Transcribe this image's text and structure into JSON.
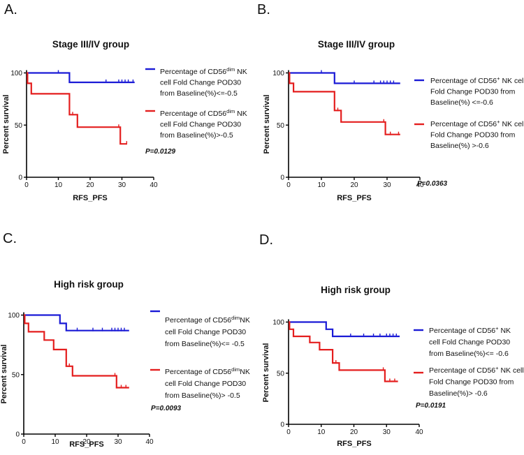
{
  "colors": {
    "group_low": "#1a1ad6",
    "group_high": "#e41e1e",
    "axis": "#000000"
  },
  "chart_data": [
    {
      "panel": "A.",
      "type": "line",
      "title": "Stage III/IV group",
      "xlabel": "RFS_PFS",
      "ylabel": "Percent survival",
      "xlim": [
        0,
        40
      ],
      "ylim": [
        0,
        100
      ],
      "xticks": [
        0,
        10,
        20,
        30,
        40
      ],
      "yticks": [
        0,
        50,
        100
      ],
      "p_value": "P=0.0129",
      "series": [
        {
          "name": "Percentage of CD56dim NK cell Fold Change POD30 from Baseline(%)<=-0.5",
          "legend_lines": [
            [
              {
                "t": "Percentage of CD56"
              },
              {
                "t": "dim",
                "sup": true
              },
              {
                "t": " NK"
              }
            ],
            [
              {
                "t": "cell Fold Change POD30"
              }
            ],
            [
              {
                "t": "from Baseline(%)<=-0.5"
              }
            ]
          ],
          "color_key": "group_low",
          "steps": [
            [
              0,
              100
            ],
            [
              13.5,
              100
            ],
            [
              13.5,
              91
            ],
            [
              34,
              91
            ]
          ],
          "censors": [
            [
              10,
              100
            ],
            [
              25,
              91
            ],
            [
              29,
              91
            ],
            [
              30,
              91
            ],
            [
              31,
              91
            ],
            [
              32,
              91
            ],
            [
              33.5,
              91
            ]
          ]
        },
        {
          "name": "Percentage of CD56dim NK cell Fold Change POD30 from Baseline(%)>-0.5",
          "legend_lines": [
            [
              {
                "t": "Percentage of CD56"
              },
              {
                "t": "dim",
                "sup": true
              },
              {
                "t": " NK"
              }
            ],
            [
              {
                "t": "cell Fold Change POD30"
              }
            ],
            [
              {
                "t": "from Baseline(%)>-0.5"
              }
            ]
          ],
          "color_key": "group_high",
          "steps": [
            [
              0,
              100
            ],
            [
              0.3,
              100
            ],
            [
              0.3,
              90
            ],
            [
              1.5,
              90
            ],
            [
              1.5,
              80
            ],
            [
              13.5,
              80
            ],
            [
              13.5,
              60
            ],
            [
              16,
              60
            ],
            [
              16,
              48
            ],
            [
              29.5,
              48
            ],
            [
              29.5,
              32
            ],
            [
              31.5,
              32
            ]
          ],
          "censors": [
            [
              14.5,
              60
            ],
            [
              29,
              48
            ],
            [
              31.5,
              32
            ]
          ]
        }
      ]
    },
    {
      "panel": "B.",
      "type": "line",
      "title": "Stage III/IV group",
      "xlabel": "RFS_PFS",
      "ylabel": "Percent survival",
      "xlim": [
        0,
        40
      ],
      "ylim": [
        0,
        100
      ],
      "xticks": [
        0,
        10,
        20,
        30,
        40
      ],
      "yticks": [
        0,
        50,
        100
      ],
      "p_value": "P=0.0363",
      "series": [
        {
          "name": "Percentage of CD56+ NK cell Fold Change POD30 from Baseline(%) <=-0.6",
          "legend_lines": [
            [
              {
                "t": "Percentage of CD56"
              },
              {
                "t": "+",
                "sup": true
              },
              {
                "t": " NK cell"
              }
            ],
            [
              {
                "t": "Fold Change POD30 from"
              }
            ],
            [
              {
                "t": "Baseline(%) <=-0.6"
              }
            ]
          ],
          "color_key": "group_low",
          "steps": [
            [
              0,
              100
            ],
            [
              14,
              100
            ],
            [
              14,
              90
            ],
            [
              34,
              90
            ]
          ],
          "censors": [
            [
              10,
              100
            ],
            [
              20,
              90
            ],
            [
              26,
              90
            ],
            [
              28,
              90
            ],
            [
              29,
              90
            ],
            [
              30,
              90
            ],
            [
              31,
              90
            ],
            [
              32,
              90
            ]
          ]
        },
        {
          "name": "Percentage of CD56+ NK cell Fold Change POD30 from Baseline(%) >-0.6",
          "legend_lines": [
            [
              {
                "t": "Percentage of CD56"
              },
              {
                "t": "+",
                "sup": true
              },
              {
                "t": " NK cell"
              }
            ],
            [
              {
                "t": "Fold Change POD30 from"
              }
            ],
            [
              {
                "t": "Baseline(%) >-0.6"
              }
            ]
          ],
          "color_key": "group_high",
          "steps": [
            [
              0,
              100
            ],
            [
              0.3,
              100
            ],
            [
              0.3,
              90
            ],
            [
              1.5,
              90
            ],
            [
              1.5,
              82
            ],
            [
              14,
              82
            ],
            [
              14,
              64
            ],
            [
              16,
              64
            ],
            [
              16,
              53
            ],
            [
              29.5,
              53
            ],
            [
              29.5,
              41
            ],
            [
              34,
              41
            ]
          ],
          "censors": [
            [
              15,
              64
            ],
            [
              29,
              53
            ],
            [
              31,
              41
            ],
            [
              33.5,
              41
            ]
          ]
        }
      ]
    },
    {
      "panel": "C.",
      "type": "line",
      "title": "High risk group",
      "xlabel": "RFS_PFS",
      "ylabel": "Percent survival",
      "xlim": [
        0,
        40
      ],
      "ylim": [
        0,
        100
      ],
      "xticks": [
        0,
        10,
        20,
        30,
        40
      ],
      "yticks": [
        0,
        50,
        100
      ],
      "p_value": "P=0.0093",
      "series": [
        {
          "name": "Percentage of CD56dimNK cell Fold Change POD30 from Baseline(%)<= -0.5",
          "legend_lines": [
            [
              {
                "t": "Percentage of CD56"
              },
              {
                "t": "dim",
                "sup": true
              },
              {
                "t": "NK"
              }
            ],
            [
              {
                "t": "cell Fold Change POD30"
              }
            ],
            [
              {
                "t": "from Baseline(%)<= -0.5"
              }
            ]
          ],
          "color_key": "group_low",
          "steps": [
            [
              0,
              100
            ],
            [
              11.5,
              100
            ],
            [
              11.5,
              93
            ],
            [
              13.5,
              93
            ],
            [
              13.5,
              87
            ],
            [
              33.5,
              87
            ]
          ],
          "censors": [
            [
              17,
              87
            ],
            [
              22,
              87
            ],
            [
              25,
              87
            ],
            [
              28,
              87
            ],
            [
              29,
              87
            ],
            [
              30,
              87
            ],
            [
              31,
              87
            ],
            [
              32,
              87
            ]
          ]
        },
        {
          "name": "Percentage of CD56dimNK cell Fold Change POD30 from Baseline(%)> -0.5",
          "legend_lines": [
            [
              {
                "t": "Percentage of CD56"
              },
              {
                "t": "dim",
                "sup": true
              },
              {
                "t": "NK"
              }
            ],
            [
              {
                "t": "cell Fold Change POD30"
              }
            ],
            [
              {
                "t": "from Baseline(%)> -0.5"
              }
            ]
          ],
          "color_key": "group_high",
          "steps": [
            [
              0,
              100
            ],
            [
              0.3,
              100
            ],
            [
              0.3,
              93
            ],
            [
              1.5,
              93
            ],
            [
              1.5,
              86
            ],
            [
              6.5,
              86
            ],
            [
              6.5,
              79
            ],
            [
              9.5,
              79
            ],
            [
              9.5,
              71
            ],
            [
              13.5,
              71
            ],
            [
              13.5,
              57
            ],
            [
              15.5,
              57
            ],
            [
              15.5,
              49
            ],
            [
              29.5,
              49
            ],
            [
              29.5,
              39
            ],
            [
              33.5,
              39
            ]
          ],
          "censors": [
            [
              14.5,
              57
            ],
            [
              29,
              49
            ],
            [
              31,
              39
            ],
            [
              32.5,
              39
            ]
          ]
        }
      ]
    },
    {
      "panel": "D.",
      "type": "line",
      "title": "High risk group",
      "xlabel": "RFS_PFS",
      "ylabel": "Percent survival",
      "xlim": [
        0,
        40
      ],
      "ylim": [
        0,
        100
      ],
      "xticks": [
        0,
        10,
        20,
        30,
        40
      ],
      "yticks": [
        0,
        50,
        100
      ],
      "p_value": "P=0.0191",
      "series": [
        {
          "name": "Percentage of CD56+ NK cell Fold Change POD30 from Baseline(%)<= -0.6",
          "legend_lines": [
            [
              {
                "t": "Percentage of CD56"
              },
              {
                "t": "+",
                "sup": true
              },
              {
                "t": " NK"
              }
            ],
            [
              {
                "t": "cell Fold Change POD30"
              }
            ],
            [
              {
                "t": "from Baseline(%)<= -0.6"
              }
            ]
          ],
          "color_key": "group_low",
          "steps": [
            [
              0,
              100
            ],
            [
              11.5,
              100
            ],
            [
              11.5,
              93
            ],
            [
              13.5,
              93
            ],
            [
              13.5,
              86
            ],
            [
              34,
              86
            ]
          ],
          "censors": [
            [
              19,
              86
            ],
            [
              23,
              86
            ],
            [
              26,
              86
            ],
            [
              28,
              86
            ],
            [
              30,
              86
            ],
            [
              31,
              86
            ],
            [
              32,
              86
            ],
            [
              33,
              86
            ]
          ]
        },
        {
          "name": "Percentage of CD56+ NK cell Fold Change POD30 from Baseline(%)> -0.6",
          "legend_lines": [
            [
              {
                "t": "Percentage of CD56"
              },
              {
                "t": "+",
                "sup": true
              },
              {
                "t": " NK cell"
              }
            ],
            [
              {
                "t": "Fold Change POD30 from"
              }
            ],
            [
              {
                "t": "Baseline(%)> -0.6"
              }
            ]
          ],
          "color_key": "group_high",
          "steps": [
            [
              0,
              100
            ],
            [
              0.3,
              100
            ],
            [
              0.3,
              93
            ],
            [
              1.5,
              93
            ],
            [
              1.5,
              86
            ],
            [
              6.5,
              86
            ],
            [
              6.5,
              80
            ],
            [
              9.5,
              80
            ],
            [
              9.5,
              73
            ],
            [
              13.5,
              73
            ],
            [
              13.5,
              60
            ],
            [
              15.5,
              60
            ],
            [
              15.5,
              53
            ],
            [
              29.5,
              53
            ],
            [
              29.5,
              42
            ],
            [
              33.5,
              42
            ]
          ],
          "censors": [
            [
              14.5,
              60
            ],
            [
              29,
              53
            ],
            [
              31,
              42
            ],
            [
              32.5,
              42
            ]
          ]
        }
      ]
    }
  ]
}
